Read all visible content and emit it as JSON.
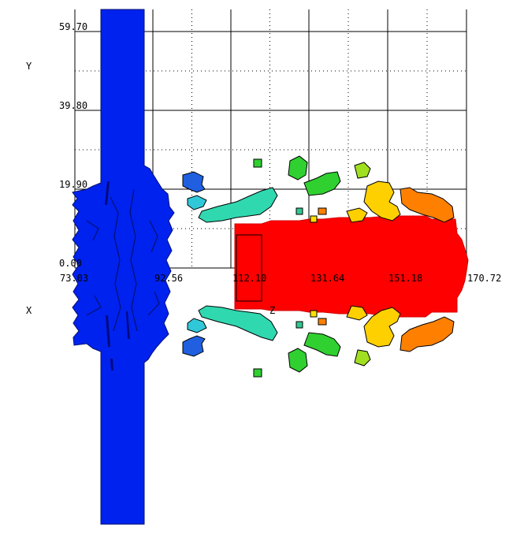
{
  "chart_data": {
    "type": "scatter",
    "title": "",
    "xlabel": "X",
    "ylabel": "Y",
    "zlabel": "Z",
    "x_ticks": [
      "0.00",
      "73.03",
      "92.56",
      "112.10",
      "131.64",
      "151.18",
      "170.72"
    ],
    "y_ticks": [
      "0.00",
      "19.90",
      "39.80",
      "59.70"
    ],
    "xlim": [
      73.03,
      170.72
    ],
    "ylim": [
      0,
      59.7
    ],
    "grid": true,
    "colormap": [
      "#0000ff",
      "#00ffff",
      "#00ff00",
      "#ffff00",
      "#ff8000",
      "#ff0000"
    ],
    "blobs": [
      {
        "name": "vertical-column",
        "color": "#0022ee",
        "x": [
          80.5,
          87.5
        ],
        "y": [
          -80,
          82
        ]
      },
      {
        "name": "column-bulge",
        "color": "#0022ee",
        "x": [
          73.03,
          98.5
        ],
        "y": [
          -20,
          20
        ]
      },
      {
        "name": "red-block",
        "color": "#ff0000",
        "x": [
          113,
          169
        ],
        "y": [
          -7,
          9
        ]
      },
      {
        "name": "upper-blue-scatter",
        "color": "#2060e0",
        "x": [
          100.5,
          105
        ],
        "y": [
          20,
          23
        ]
      },
      {
        "name": "upper-cyan-scatter",
        "color": "#20c0c0",
        "x": [
          101,
          121
        ],
        "y": [
          14,
          18
        ]
      },
      {
        "name": "upper-green-scatter",
        "color": "#30d030",
        "x": [
          127,
          142
        ],
        "y": [
          19,
          27
        ]
      },
      {
        "name": "upper-yellow-scatter",
        "color": "#ffd000",
        "x": [
          148,
          158
        ],
        "y": [
          12,
          21
        ]
      },
      {
        "name": "upper-orange-scatter",
        "color": "#ff8000",
        "x": [
          157,
          170
        ],
        "y": [
          12,
          20
        ]
      },
      {
        "name": "lower-blue-scatter",
        "color": "#2060e0",
        "x": [
          100.5,
          105
        ],
        "y": [
          -23,
          -20
        ]
      },
      {
        "name": "lower-cyan-scatter",
        "color": "#20c0c0",
        "x": [
          101,
          121
        ],
        "y": [
          -18,
          -13
        ]
      },
      {
        "name": "lower-green-scatter",
        "color": "#30d030",
        "x": [
          127,
          142
        ],
        "y": [
          -27,
          -19
        ]
      },
      {
        "name": "lower-yellow-scatter",
        "color": "#ffd000",
        "x": [
          148,
          158
        ],
        "y": [
          -21,
          -12
        ]
      },
      {
        "name": "lower-orange-scatter",
        "color": "#ff8000",
        "x": [
          157,
          170
        ],
        "y": [
          -20,
          -12
        ]
      }
    ]
  }
}
